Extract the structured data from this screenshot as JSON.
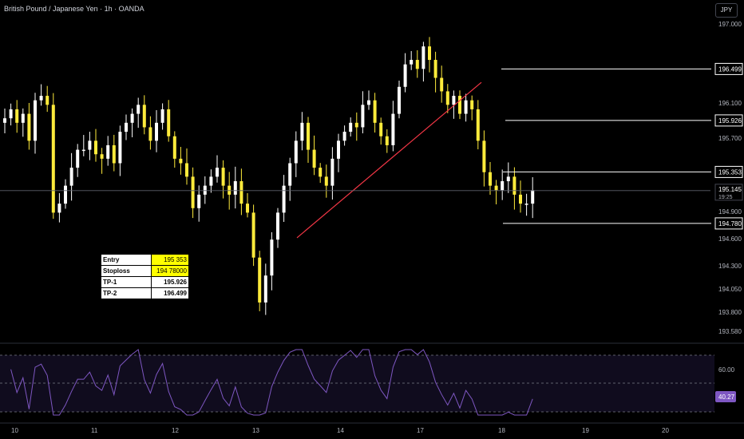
{
  "header": {
    "symbol_title": "British Pound / Japanese Yen · 1h · OANDA",
    "currency_button": "JPY"
  },
  "price_axis": {
    "ticks": [
      "197.000",
      "196.100",
      "195.700",
      "194.900",
      "194.600",
      "194.300",
      "194.050",
      "193.800",
      "193.580"
    ],
    "current_price": "195.145",
    "countdown": "19:25"
  },
  "levels": [
    {
      "name": "tp-2",
      "price": 196.499,
      "label": "196.499"
    },
    {
      "name": "tp-1",
      "price": 195.926,
      "label": "195.926"
    },
    {
      "name": "entry",
      "price": 195.353,
      "label": "195.353"
    },
    {
      "name": "stoploss",
      "price": 194.78,
      "label": "194.780"
    }
  ],
  "time_axis": {
    "labels": [
      "10",
      "11",
      "12",
      "13",
      "14",
      "17",
      "18",
      "19",
      "20"
    ]
  },
  "trade_table": {
    "rows": [
      {
        "label": "Entry",
        "value": "195 353"
      },
      {
        "label": "Stoploss",
        "value": "194 78000"
      },
      {
        "label": "TP-1",
        "value": "195.926"
      },
      {
        "label": "TP-2",
        "value": "196.499"
      }
    ]
  },
  "rsi": {
    "level_label": "60.00",
    "current_value": "40.27",
    "line_color": "#7e57c2",
    "badge_color": "#7e57c2"
  },
  "colors": {
    "up_candle": "#ffffff",
    "down_candle": "#ffeb3b",
    "trendline": "#f23645"
  },
  "chart_data": {
    "type": "candlestick",
    "interval": "1h",
    "x_labels": [
      "10",
      "11",
      "12",
      "13",
      "14",
      "17",
      "18",
      "19",
      "20"
    ],
    "y_range": [
      193.55,
      197.05
    ],
    "close_path": [
      195.95,
      196.05,
      195.9,
      196.0,
      195.7,
      196.15,
      196.2,
      196.1,
      194.9,
      195.0,
      195.2,
      195.4,
      195.6,
      195.6,
      195.7,
      195.55,
      195.5,
      195.65,
      195.45,
      195.8,
      195.9,
      196.0,
      196.1,
      195.85,
      195.7,
      195.9,
      196.05,
      195.75,
      195.5,
      195.45,
      195.3,
      194.95,
      195.1,
      195.2,
      195.3,
      195.4,
      195.2,
      195.1,
      195.25,
      195.0,
      194.9,
      194.4,
      193.9,
      194.2,
      194.6,
      194.9,
      195.2,
      195.45,
      195.7,
      195.9,
      195.6,
      195.4,
      195.3,
      195.2,
      195.5,
      195.7,
      195.8,
      195.9,
      195.85,
      196.1,
      196.15,
      195.9,
      195.75,
      195.65,
      196.0,
      196.3,
      196.55,
      196.6,
      196.5,
      196.75,
      196.6,
      196.4,
      196.25,
      196.1,
      196.2,
      196.0,
      196.15,
      196.05,
      195.7,
      195.35,
      195.2,
      195.15,
      195.25,
      195.3,
      195.1,
      195.0,
      195.0,
      195.15
    ],
    "trendline": {
      "from_price": 194.62,
      "to_price": 196.35
    },
    "rsi_current": 40.27
  }
}
